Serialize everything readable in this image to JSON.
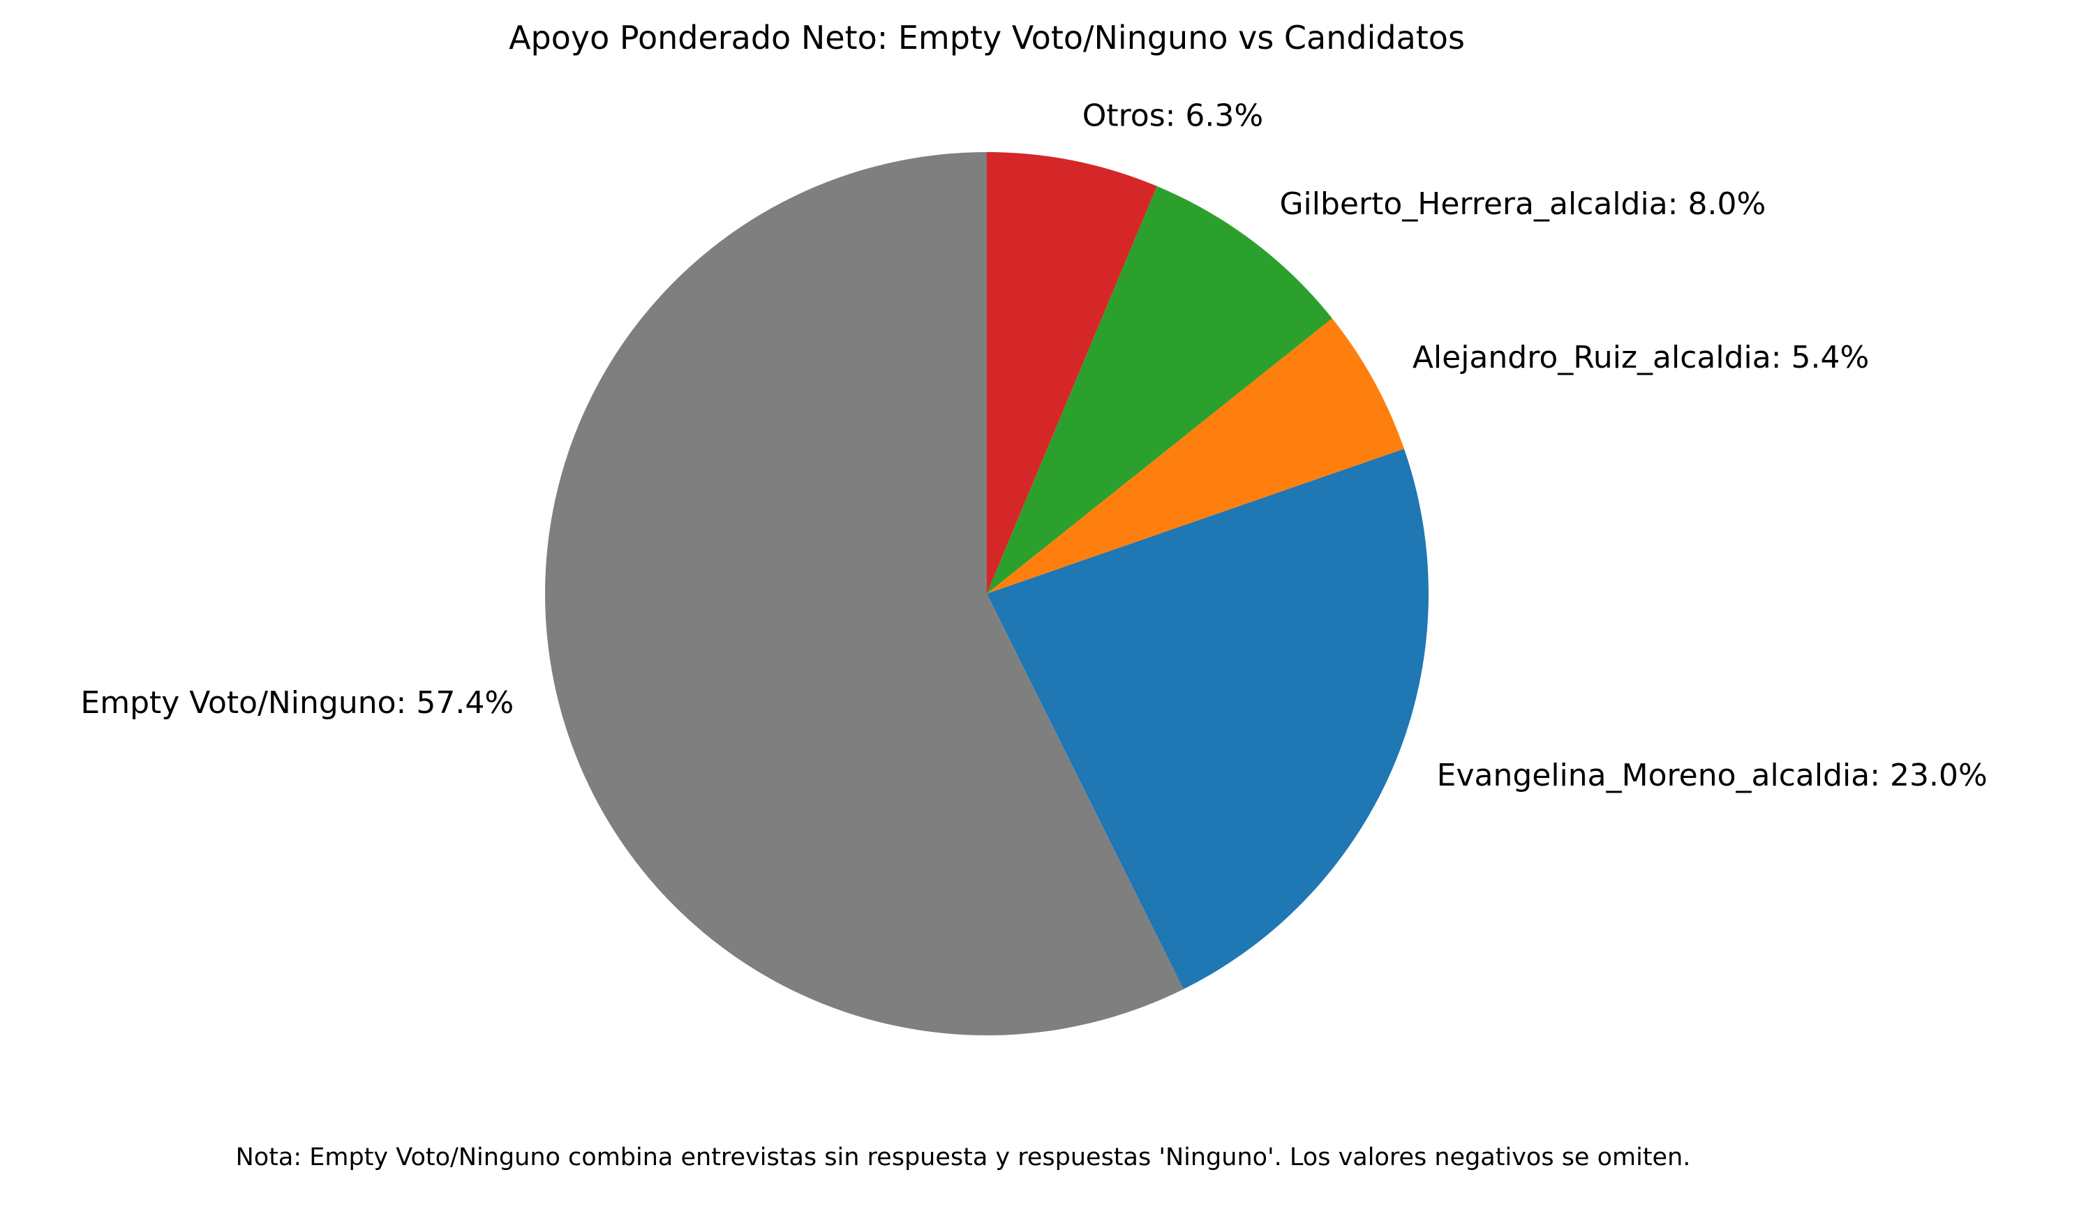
{
  "chart_data": {
    "type": "pie",
    "title": "Apoyo Ponderado Neto: Empty Voto/Ninguno vs Candidatos",
    "start_angle_deg": 90,
    "direction": "clockwise",
    "slices": [
      {
        "label": "Otros",
        "percent_label": "6.3%",
        "value": 6.3,
        "color": "#d62728"
      },
      {
        "label": "Gilberto_Herrera_alcaldia",
        "percent_label": "8.0%",
        "value": 8.0,
        "color": "#2ca02c"
      },
      {
        "label": "Alejandro_Ruiz_alcaldia",
        "percent_label": "5.4%",
        "value": 5.4,
        "color": "#ff7f0e"
      },
      {
        "label": "Evangelina_Moreno_alcaldia",
        "percent_label": "23.0%",
        "value": 23.0,
        "color": "#1f77b4"
      },
      {
        "label": "Empty Voto/Ninguno",
        "percent_label": "57.4%",
        "value": 57.4,
        "color": "#7f7f7f"
      }
    ],
    "note": "Nota: Empty Voto/Ninguno combina entrevistas sin respuesta y respuestas 'Ninguno'. Los valores negativos se omiten."
  }
}
